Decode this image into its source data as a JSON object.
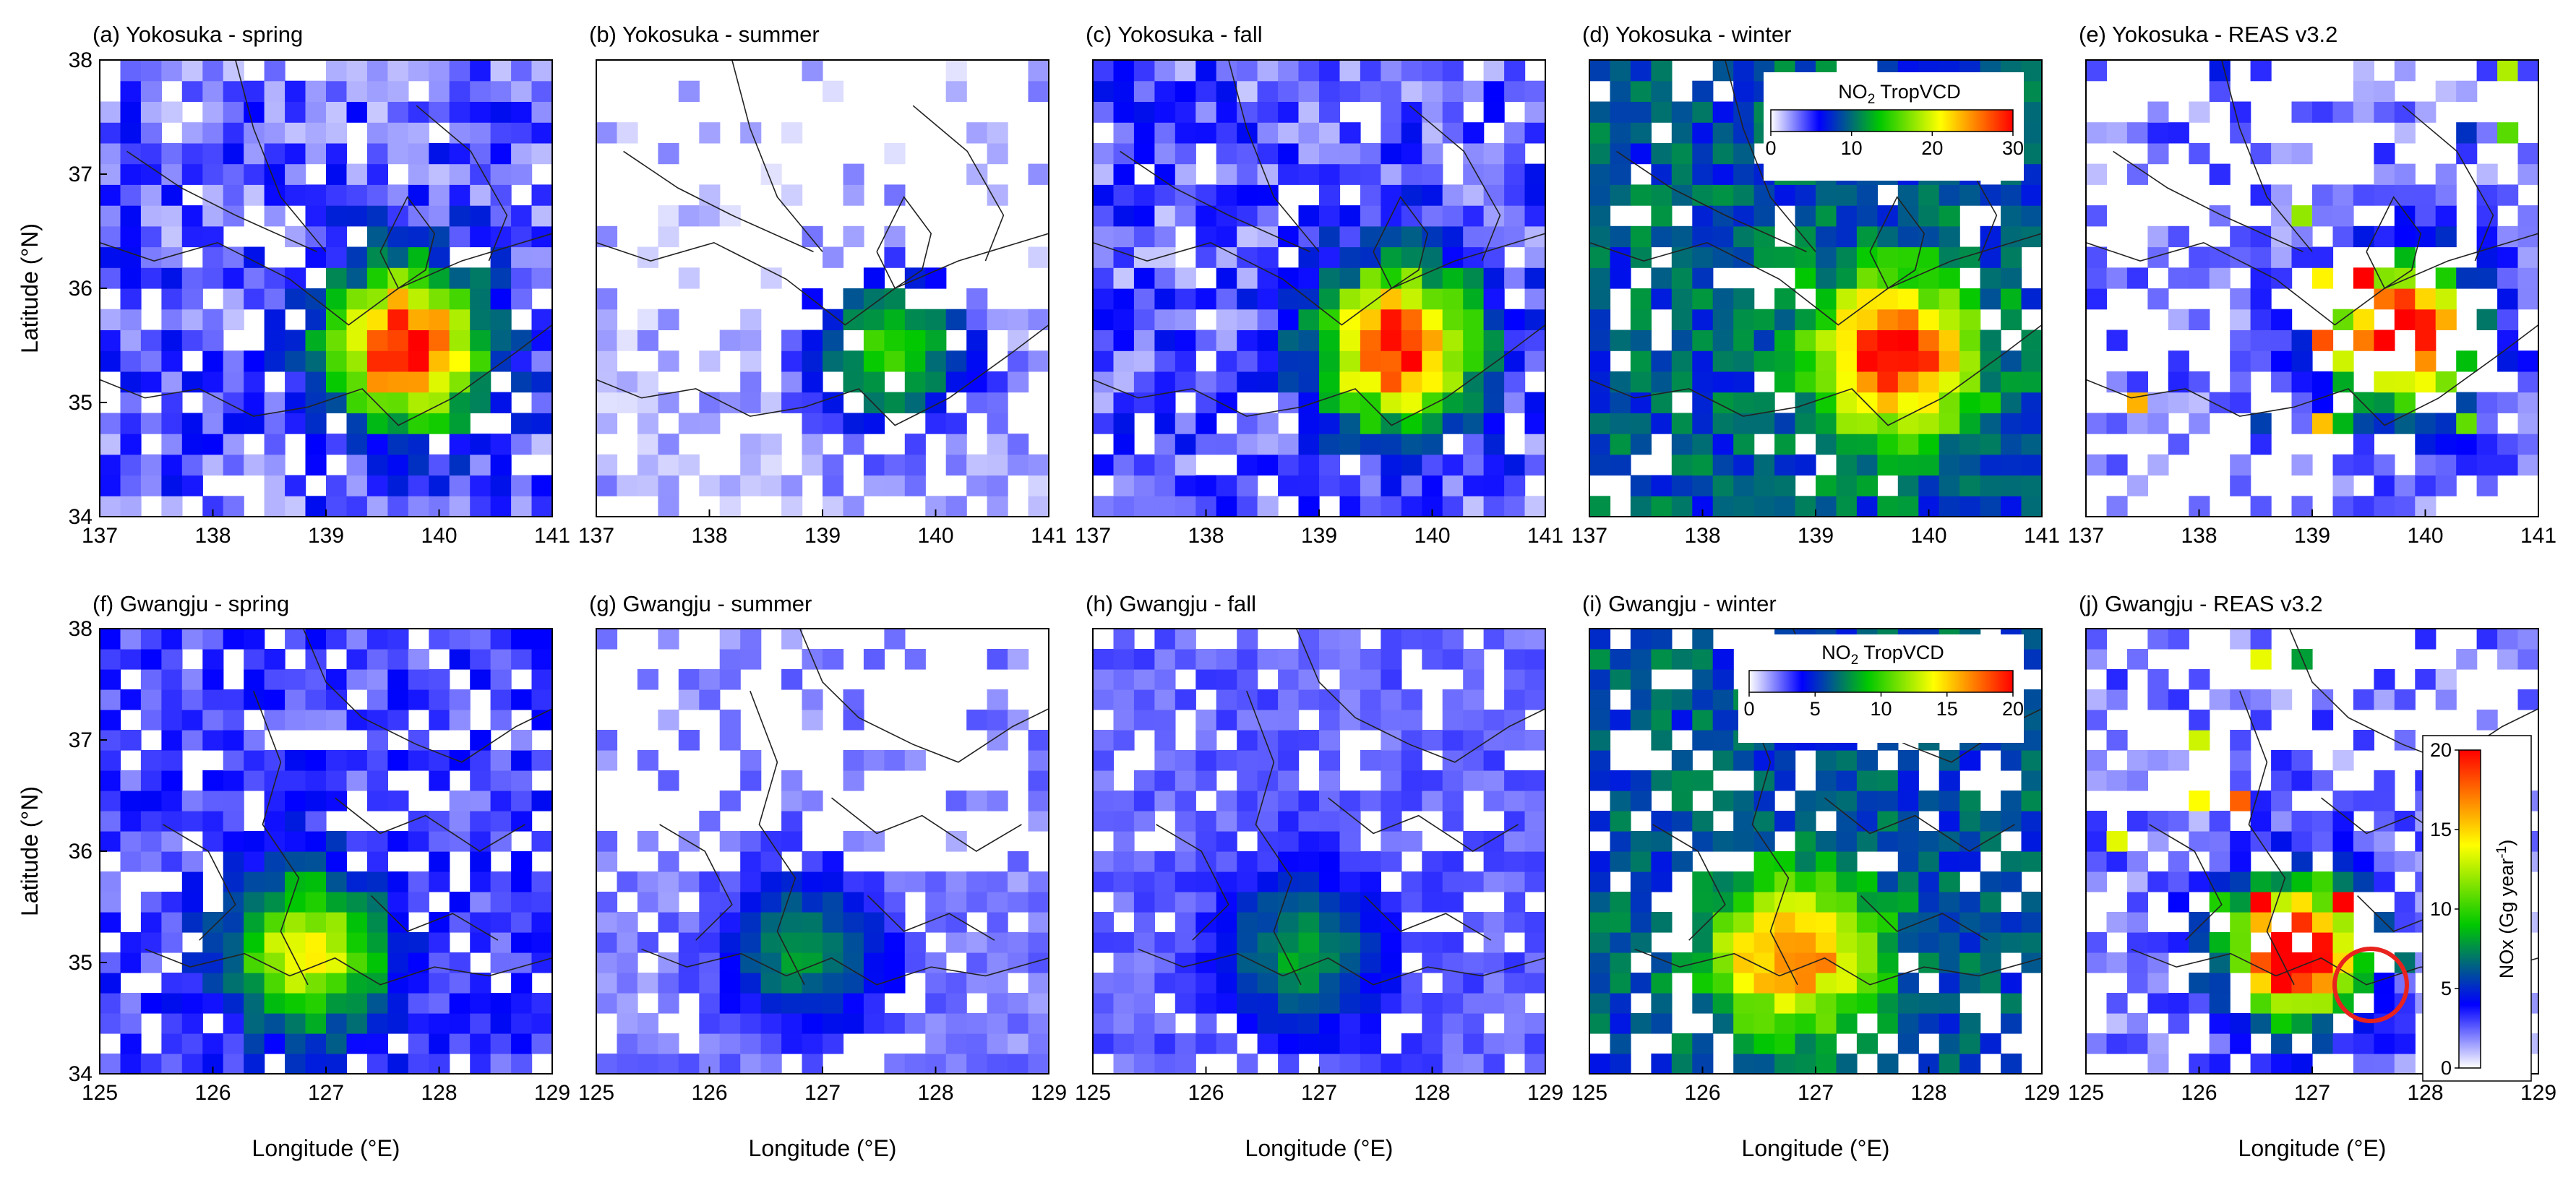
{
  "figure": {
    "ylabel": "Latitude (°N)",
    "xlabel": "Longitude (°E)"
  },
  "chart_data": [
    {
      "id": "a",
      "type": "heatmap",
      "title": "(a) Yokosuka - spring",
      "region": "yokosuka",
      "season": "spring",
      "xlim": [
        137,
        141
      ],
      "ylim": [
        34,
        38
      ],
      "xticks": [
        "137",
        "138",
        "139",
        "140",
        "141"
      ],
      "yticks": [
        "34",
        "35",
        "36",
        "37",
        "38"
      ],
      "variable": "NO2 TropVCD",
      "center": [
        139.7,
        35.5
      ],
      "peak": 30,
      "background": 4,
      "coverage": 0.85
    },
    {
      "id": "b",
      "type": "heatmap",
      "title": "(b) Yokosuka - summer",
      "region": "yokosuka",
      "season": "summer",
      "xlim": [
        137,
        141
      ],
      "ylim": [
        34,
        38
      ],
      "xticks": [
        "137",
        "138",
        "139",
        "140",
        "141"
      ],
      "yticks": [
        "34",
        "35",
        "36",
        "37",
        "38"
      ],
      "variable": "NO2 TropVCD",
      "center": [
        139.6,
        35.45
      ],
      "peak": 15,
      "background": 2,
      "coverage": 0.5
    },
    {
      "id": "c",
      "type": "heatmap",
      "title": "(c) Yokosuka - fall",
      "region": "yokosuka",
      "season": "fall",
      "xlim": [
        137,
        141
      ],
      "ylim": [
        34,
        38
      ],
      "xticks": [
        "137",
        "138",
        "139",
        "140",
        "141"
      ],
      "yticks": [
        "34",
        "35",
        "36",
        "37",
        "38"
      ],
      "variable": "NO2 TropVCD",
      "center": [
        139.7,
        35.5
      ],
      "peak": 30,
      "background": 4,
      "coverage": 0.9
    },
    {
      "id": "d",
      "type": "heatmap",
      "title": "(d) Yokosuka - winter",
      "region": "yokosuka",
      "season": "winter",
      "xlim": [
        137,
        141
      ],
      "ylim": [
        34,
        38
      ],
      "xticks": [
        "137",
        "138",
        "139",
        "140",
        "141"
      ],
      "yticks": [
        "34",
        "35",
        "36",
        "37",
        "38"
      ],
      "variable": "NO2 TropVCD",
      "center": [
        139.7,
        35.4
      ],
      "peak": 30,
      "background": 9,
      "coverage": 0.85
    },
    {
      "id": "e",
      "type": "heatmap",
      "title": "(e) Yokosuka - REAS v3.2",
      "region": "yokosuka",
      "season": "REAS v3.2",
      "xlim": [
        137,
        141
      ],
      "ylim": [
        34,
        38
      ],
      "xticks": [
        "137",
        "138",
        "139",
        "140",
        "141"
      ],
      "yticks": [
        "34",
        "35",
        "36",
        "37",
        "38"
      ],
      "variable": "NOx emissions (Gg year-1)",
      "center": [
        139.8,
        35.6
      ],
      "peak": 20,
      "background": 1,
      "coverage": 0.7
    },
    {
      "id": "f",
      "type": "heatmap",
      "title": "(f) Gwangju - spring",
      "region": "gwangju",
      "season": "spring",
      "xlim": [
        125,
        129
      ],
      "ylim": [
        34,
        38
      ],
      "xticks": [
        "125",
        "126",
        "127",
        "128",
        "129"
      ],
      "yticks": [
        "34",
        "35",
        "36",
        "37",
        "38"
      ],
      "variable": "NO2 TropVCD",
      "center": [
        126.85,
        35.1
      ],
      "peak": 14,
      "background": 3,
      "coverage": 0.8
    },
    {
      "id": "g",
      "type": "heatmap",
      "title": "(g) Gwangju - summer",
      "region": "gwangju",
      "season": "summer",
      "xlim": [
        125,
        129
      ],
      "ylim": [
        34,
        38
      ],
      "xticks": [
        "125",
        "126",
        "127",
        "128",
        "129"
      ],
      "yticks": [
        "34",
        "35",
        "36",
        "37",
        "38"
      ],
      "variable": "NO2 TropVCD",
      "center": [
        126.85,
        35.1
      ],
      "peak": 8,
      "background": 2,
      "coverage": 0.75
    },
    {
      "id": "h",
      "type": "heatmap",
      "title": "(h) Gwangju - fall",
      "region": "gwangju",
      "season": "fall",
      "xlim": [
        125,
        129
      ],
      "ylim": [
        34,
        38
      ],
      "xticks": [
        "125",
        "126",
        "127",
        "128",
        "129"
      ],
      "yticks": [
        "34",
        "35",
        "36",
        "37",
        "38"
      ],
      "variable": "NO2 TropVCD",
      "center": [
        126.85,
        35.1
      ],
      "peak": 8,
      "background": 2.5,
      "coverage": 0.8
    },
    {
      "id": "i",
      "type": "heatmap",
      "title": "(i) Gwangju - winter",
      "region": "gwangju",
      "season": "winter",
      "xlim": [
        125,
        129
      ],
      "ylim": [
        34,
        38
      ],
      "xticks": [
        "125",
        "126",
        "127",
        "128",
        "129"
      ],
      "yticks": [
        "34",
        "35",
        "36",
        "37",
        "38"
      ],
      "variable": "NO2 TropVCD",
      "center": [
        126.8,
        35.1
      ],
      "peak": 18,
      "background": 6,
      "coverage": 0.7
    },
    {
      "id": "j",
      "type": "heatmap",
      "title": "(j) Gwangju - REAS v3.2",
      "region": "gwangju",
      "season": "REAS v3.2",
      "xlim": [
        125,
        129
      ],
      "ylim": [
        34,
        38
      ],
      "xticks": [
        "125",
        "126",
        "127",
        "128",
        "129"
      ],
      "yticks": [
        "34",
        "35",
        "36",
        "37",
        "38"
      ],
      "variable": "NOx emissions (Gg year-1)",
      "center": [
        126.85,
        35.1
      ],
      "peak": 20,
      "background": 1,
      "coverage": 0.7
    }
  ],
  "colorbars": [
    {
      "id": "cb-yokosuka-no2",
      "title_main": "NO",
      "title_sub": "2",
      "title_rest": " TropVCD",
      "ticks": [
        "0",
        "10",
        "20",
        "30"
      ],
      "tick_values": [
        0,
        10,
        20,
        30
      ],
      "range": [
        0,
        30
      ]
    },
    {
      "id": "cb-gwangju-no2",
      "title_main": "NO",
      "title_sub": "2",
      "title_rest": " TropVCD",
      "ticks": [
        "0",
        "5",
        "10",
        "15",
        "20"
      ],
      "tick_values": [
        0,
        5,
        10,
        15,
        20
      ],
      "range": [
        0,
        20
      ]
    },
    {
      "id": "cb-reas-nox",
      "title": "NOx (Gg year",
      "title_sup": "-1",
      "title_end": ")",
      "ticks": [
        "0",
        "5",
        "10",
        "15",
        "20"
      ],
      "tick_values": [
        0,
        5,
        10,
        15,
        20
      ],
      "range": [
        0,
        20
      ]
    }
  ],
  "colors": {
    "scale": [
      "#ffffff",
      "#0000ff",
      "#00c800",
      "#ffff00",
      "#ff7f00",
      "#ff0000"
    ],
    "highlight_circle": "#e8231e"
  }
}
